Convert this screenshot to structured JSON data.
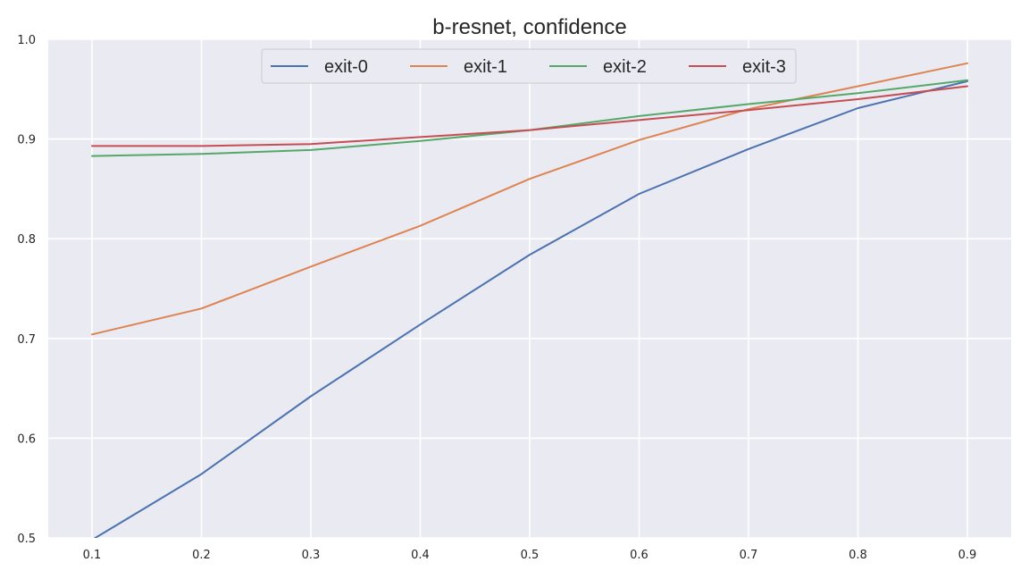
{
  "chart_data": {
    "type": "line",
    "title": "b-resnet, confidence",
    "xlabel": "",
    "ylabel": "",
    "x": [
      0.1,
      0.2,
      0.3,
      0.4,
      0.5,
      0.6,
      0.7,
      0.8,
      0.9
    ],
    "x_ticks": [
      "0.1",
      "0.2",
      "0.3",
      "0.4",
      "0.5",
      "0.6",
      "0.7",
      "0.8",
      "0.9"
    ],
    "y_ticks": [
      "0.5",
      "0.6",
      "0.7",
      "0.8",
      "0.9",
      "1.0"
    ],
    "xlim": [
      0.06,
      0.94
    ],
    "ylim": [
      0.5,
      1.0
    ],
    "grid": true,
    "legend_position": "upper-center",
    "background": "#eaeaf2",
    "series": [
      {
        "name": "exit-0",
        "color": "#4c72b0",
        "values": [
          0.498,
          0.564,
          0.642,
          0.714,
          0.784,
          0.845,
          0.89,
          0.931,
          0.958
        ]
      },
      {
        "name": "exit-1",
        "color": "#dd8452",
        "values": [
          0.704,
          0.73,
          0.772,
          0.813,
          0.86,
          0.899,
          0.93,
          0.953,
          0.976
        ]
      },
      {
        "name": "exit-2",
        "color": "#55a868",
        "values": [
          0.883,
          0.885,
          0.889,
          0.898,
          0.909,
          0.923,
          0.935,
          0.946,
          0.959
        ]
      },
      {
        "name": "exit-3",
        "color": "#c44e52",
        "values": [
          0.893,
          0.893,
          0.895,
          0.902,
          0.909,
          0.919,
          0.929,
          0.94,
          0.953
        ]
      }
    ]
  }
}
